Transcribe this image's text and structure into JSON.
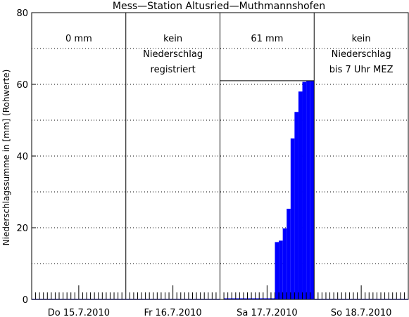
{
  "chart_data": {
    "type": "area",
    "title": "Mess—Station Altusried—Muthmannshofen",
    "ylabel": "Niederschlagssumme in [mm] (Rohwerte)",
    "xlabel": "",
    "ylim": [
      0,
      80
    ],
    "yticks": [
      0,
      20,
      40,
      60,
      80
    ],
    "grid": true,
    "day_labels": [
      "Do 15.7.2010",
      "Fr 16.7.2010",
      "Sa 17.7.2010",
      "So 18.7.2010"
    ],
    "annotations": [
      {
        "day": 0,
        "lines": [
          "0 mm"
        ]
      },
      {
        "day": 1,
        "lines": [
          "kein",
          "Niederschlag",
          "registriert"
        ]
      },
      {
        "day": 2,
        "lines": [
          "61 mm"
        ]
      },
      {
        "day": 3,
        "lines": [
          "kein",
          "Niederschlag",
          "bis 7 Uhr MEZ"
        ]
      }
    ],
    "day_total_line": {
      "day": 2,
      "value": 61
    },
    "series": [
      {
        "hours": [
          0,
          1,
          2,
          3,
          4,
          5,
          6,
          7,
          8,
          9,
          10,
          11,
          12,
          13,
          14,
          15,
          16,
          17,
          18,
          19,
          20,
          21,
          22,
          23,
          24
        ],
        "values": [
          0,
          0.3,
          0.3,
          0.3,
          0.3,
          0.3,
          0.3,
          0.3,
          0.3,
          0.3,
          0.3,
          0.3,
          0.3,
          0.3,
          16,
          16.4,
          19.8,
          25.3,
          44.9,
          52.3,
          58,
          60.7,
          61,
          61,
          61
        ]
      }
    ]
  },
  "colors": {
    "fill": "#0000ff",
    "axis": "#000000"
  }
}
